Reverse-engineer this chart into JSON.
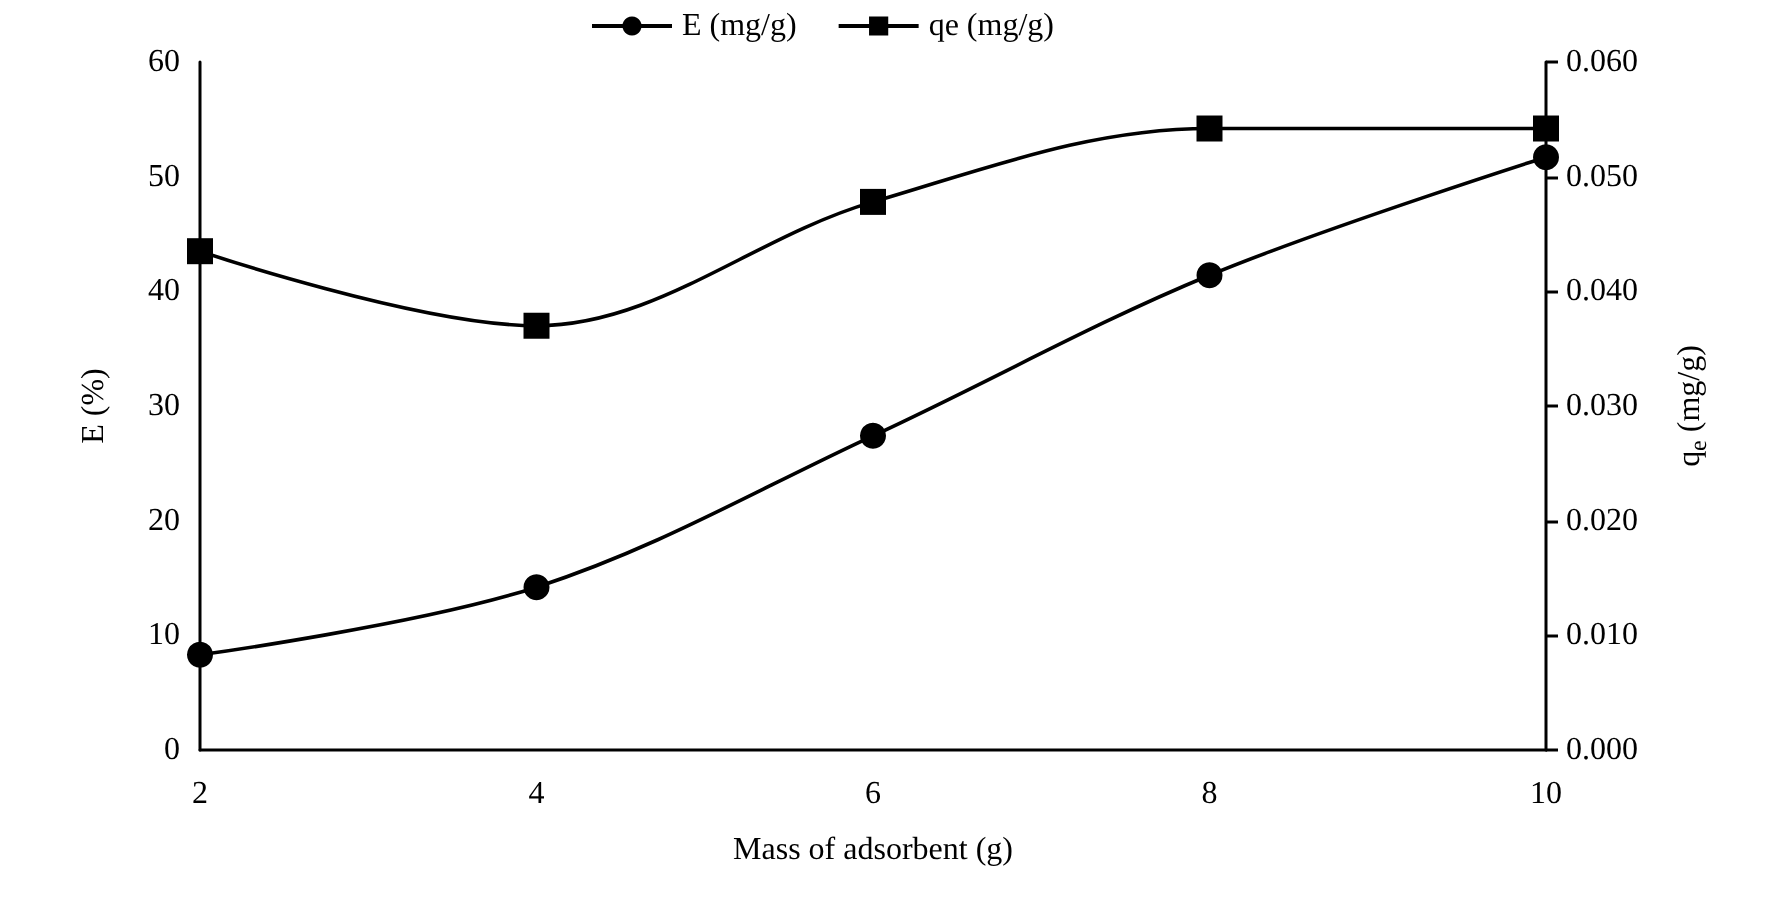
{
  "chart_data": {
    "type": "line",
    "xlabel": "Mass of adsorbent (g)",
    "ylabel": "E (%)",
    "y2label": "q$_{e}$ (mg/g)",
    "categories": [
      "2",
      "4",
      "6",
      "8",
      "10"
    ],
    "ylim": [
      0,
      60
    ],
    "yticks": [
      0,
      10,
      20,
      30,
      40,
      50,
      60
    ],
    "y2lim": [
      0,
      0.06
    ],
    "y2ticks": [
      {
        "value": 0,
        "label": "0.000"
      },
      {
        "value": 0.01,
        "label": "0.010"
      },
      {
        "value": 0.02,
        "label": "0.020"
      },
      {
        "value": 0.03,
        "label": "0.030"
      },
      {
        "value": 0.04,
        "label": "0.040"
      },
      {
        "value": 0.05,
        "label": "0.050"
      },
      {
        "value": 0.06,
        "label": "0.060"
      }
    ],
    "series": [
      {
        "name": "E (mg/g)",
        "color": "#000000",
        "marker": "circle",
        "values": [
          8.3,
          14.2,
          27.4,
          41.4,
          51.7
        ]
      },
      {
        "name": "qe (mg/g)",
        "color": "#000000",
        "marker": "square",
        "axis": "y2",
        "values": [
          0.0435,
          0.037,
          0.0478,
          0.0542,
          0.0542
        ]
      }
    ],
    "legend": "top",
    "grid": false,
    "line_style": "solid"
  }
}
